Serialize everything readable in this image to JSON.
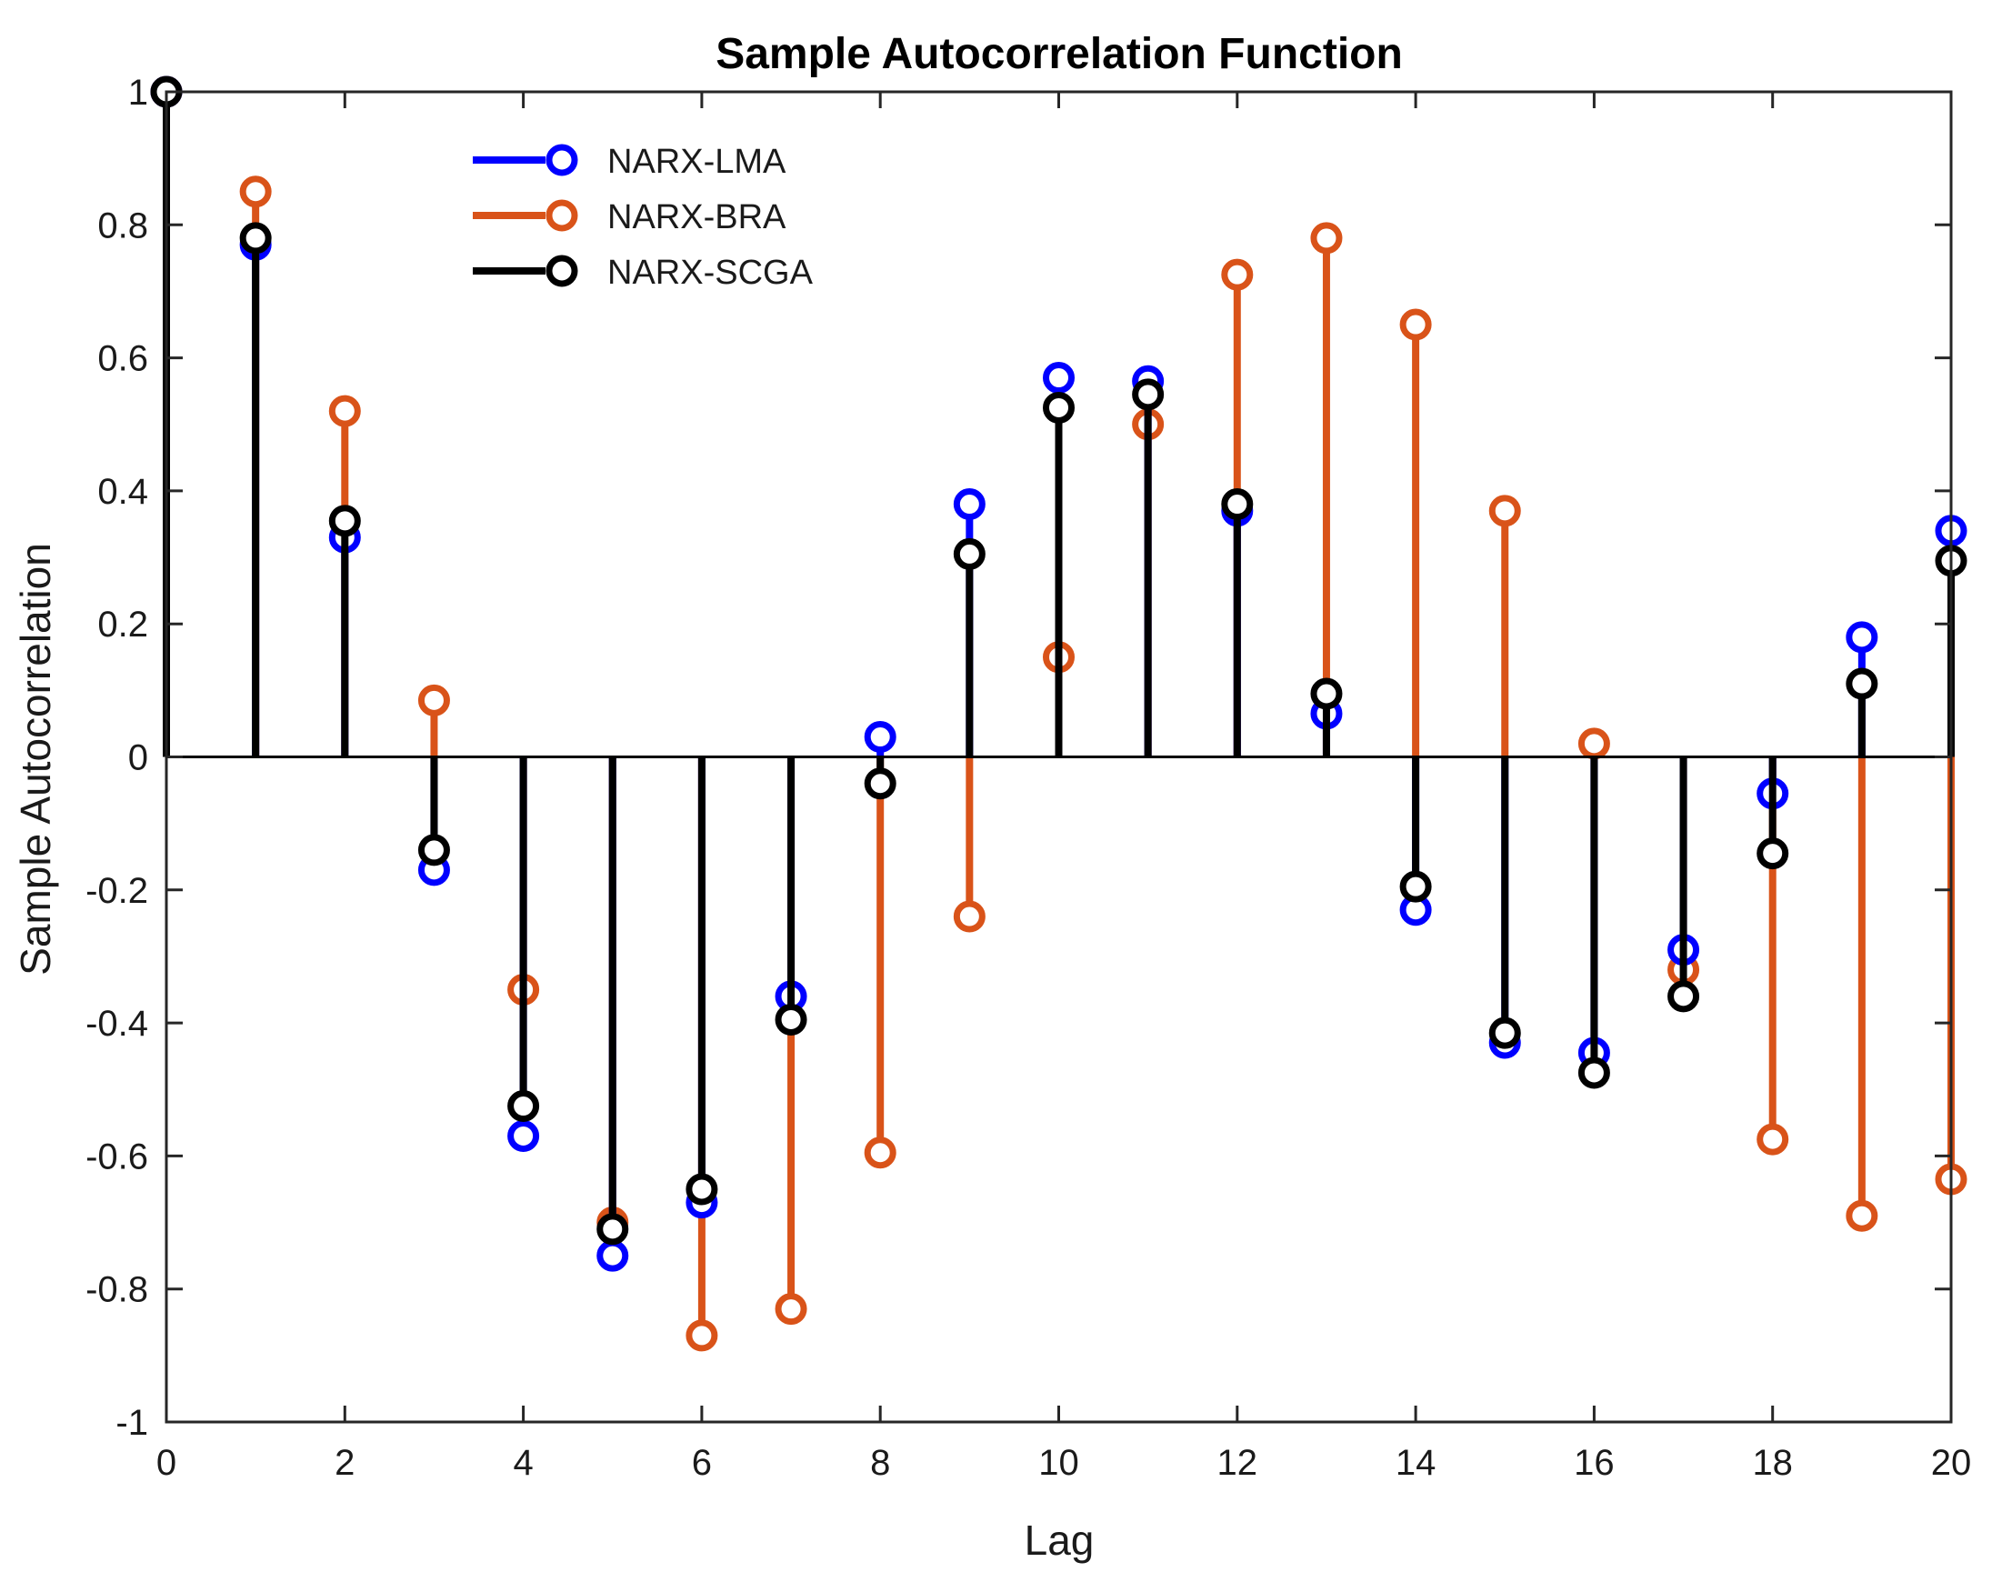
{
  "chart_data": {
    "type": "stem",
    "title": "Sample Autocorrelation Function",
    "xlabel": "Lag",
    "ylabel": "Sample Autocorrelation",
    "xlim": [
      0,
      20
    ],
    "ylim": [
      -1,
      1
    ],
    "xticks": [
      0,
      2,
      4,
      6,
      8,
      10,
      12,
      14,
      16,
      18,
      20
    ],
    "yticks": [
      -1,
      -0.8,
      -0.6,
      -0.4,
      -0.2,
      0,
      0.2,
      0.4,
      0.6,
      0.8,
      1
    ],
    "legend_position": "top-left",
    "x": [
      0,
      1,
      2,
      3,
      4,
      5,
      6,
      7,
      8,
      9,
      10,
      11,
      12,
      13,
      14,
      15,
      16,
      17,
      18,
      19,
      20
    ],
    "series": [
      {
        "name": "NARX-LMA",
        "color": "#0000ff",
        "values": [
          1.0,
          0.77,
          0.33,
          -0.17,
          -0.57,
          -0.75,
          -0.67,
          -0.36,
          0.03,
          0.38,
          0.57,
          0.565,
          0.37,
          0.065,
          -0.23,
          -0.43,
          -0.445,
          -0.29,
          -0.055,
          0.18,
          0.34
        ]
      },
      {
        "name": "NARX-BRA",
        "color": "#d95319",
        "values": [
          1.0,
          0.85,
          0.52,
          0.085,
          -0.35,
          -0.7,
          -0.87,
          -0.83,
          -0.595,
          -0.24,
          0.15,
          0.5,
          0.725,
          0.78,
          0.65,
          0.37,
          0.02,
          -0.32,
          -0.575,
          -0.69,
          -0.635
        ]
      },
      {
        "name": "NARX-SCGA",
        "color": "#000000",
        "values": [
          1.0,
          0.78,
          0.355,
          -0.14,
          -0.525,
          -0.71,
          -0.65,
          -0.395,
          -0.04,
          0.305,
          0.525,
          0.545,
          0.38,
          0.095,
          -0.195,
          -0.415,
          -0.475,
          -0.36,
          -0.145,
          0.11,
          0.295
        ]
      }
    ]
  }
}
